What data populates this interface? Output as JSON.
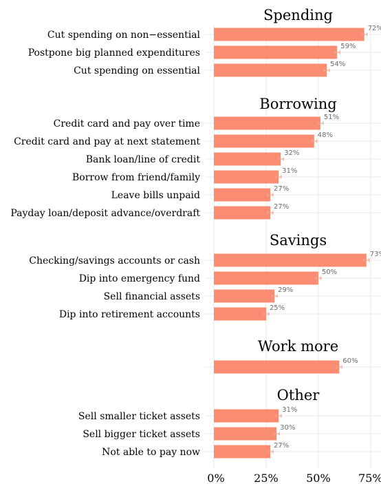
{
  "chart_data": {
    "type": "bar",
    "orientation": "horizontal",
    "bar_color": "#FA8C71",
    "error_bar_color": "#F4A58F",
    "grid_color": "#e9e9e9",
    "xlim": [
      0,
      80
    ],
    "x_ticks": [
      0,
      25,
      50,
      75
    ],
    "x_tick_labels": [
      "0%",
      "25%",
      "50%",
      "75%"
    ],
    "error_margin": 1.3,
    "panels": [
      {
        "title": "Spending",
        "categories": [
          "Cut spending on non−essential",
          "Postpone big planned expenditures",
          "Cut spending on essential"
        ],
        "values": [
          72,
          59,
          54
        ],
        "labels": [
          "72%",
          "59%",
          "54%"
        ]
      },
      {
        "title": "Borrowing",
        "categories": [
          "Credit card and pay over time",
          "Credit card and pay at next statement",
          "Bank loan/line of credit",
          "Borrow from friend/family",
          "Leave bills unpaid",
          "Payday loan/deposit advance/overdraft"
        ],
        "values": [
          51,
          48,
          32,
          31,
          27,
          27
        ],
        "labels": [
          "51%",
          "48%",
          "32%",
          "31%",
          "27%",
          "27%"
        ]
      },
      {
        "title": "Savings",
        "categories": [
          "Checking/savings accounts or cash",
          "Dip into emergency fund",
          "Sell financial assets",
          "Dip into retirement accounts"
        ],
        "values": [
          73,
          50,
          29,
          25
        ],
        "labels": [
          "73%",
          "50%",
          "29%",
          "25%"
        ]
      },
      {
        "title": "Work more",
        "categories": [
          ""
        ],
        "values": [
          60
        ],
        "labels": [
          "60%"
        ]
      },
      {
        "title": "Other",
        "categories": [
          "Sell smaller ticket assets",
          "Sell bigger ticket assets",
          "Not able to pay now"
        ],
        "values": [
          31,
          30,
          27
        ],
        "labels": [
          "31%",
          "30%",
          "27%"
        ]
      }
    ]
  }
}
